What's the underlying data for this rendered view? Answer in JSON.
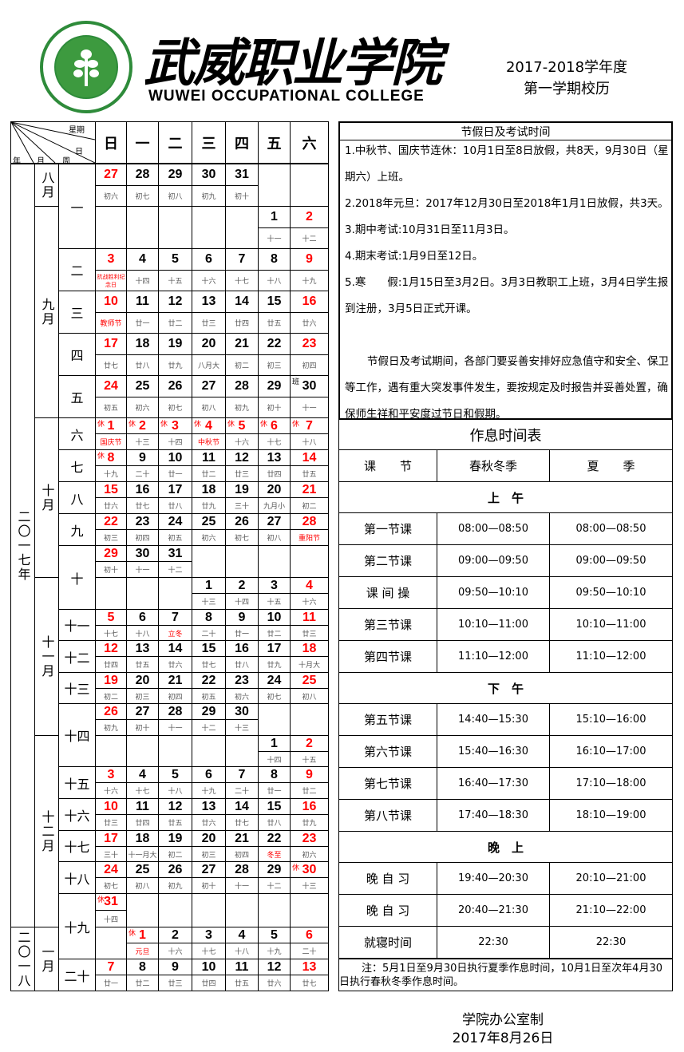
{
  "header": {
    "college_cn": "武威职业学院",
    "college_en": "WUWEI OCCUPATIONAL COLLEGE",
    "logo_text": "武威职业学院 WUWEI OCCUPATIONAL COLLEGE 2003.6.6",
    "year_label": "2017-2018学年度",
    "semester_label": "第一学期校历"
  },
  "corner": {
    "weekday": "星期",
    "day": "日",
    "year": "年",
    "month": "月",
    "week": "周"
  },
  "weekdays": [
    "日",
    "一",
    "二",
    "三",
    "四",
    "五",
    "六"
  ],
  "colors": {
    "holiday": "#ff0000",
    "logo_green": "#2e8b3a"
  },
  "years": [
    {
      "label": "二〇一七年",
      "rows": 22
    },
    {
      "label": "二〇一八",
      "rows": 2
    }
  ],
  "months": [
    {
      "label": "八月",
      "rows": 1
    },
    {
      "label": "九月",
      "rows": 5
    },
    {
      "label": "十月",
      "rows": 5
    },
    {
      "label": "十一月",
      "rows": 5
    },
    {
      "label": "十二月",
      "rows": 6
    },
    {
      "label": "一月",
      "rows": 2
    }
  ],
  "weeks": [
    {
      "label": "一",
      "rows": 2
    },
    {
      "label": "二",
      "rows": 1
    },
    {
      "label": "三",
      "rows": 1
    },
    {
      "label": "四",
      "rows": 1
    },
    {
      "label": "五",
      "rows": 1
    },
    {
      "label": "六",
      "rows": 1
    },
    {
      "label": "七",
      "rows": 1
    },
    {
      "label": "八",
      "rows": 1
    },
    {
      "label": "九",
      "rows": 1
    },
    {
      "label": "十",
      "rows": 2
    },
    {
      "label": "十一",
      "rows": 1
    },
    {
      "label": "十二",
      "rows": 1
    },
    {
      "label": "十三",
      "rows": 1
    },
    {
      "label": "十四",
      "rows": 2
    },
    {
      "label": "十五",
      "rows": 1
    },
    {
      "label": "十六",
      "rows": 1
    },
    {
      "label": "十七",
      "rows": 1
    },
    {
      "label": "十八",
      "rows": 1
    },
    {
      "label": "十九",
      "rows": 2
    },
    {
      "label": "二十",
      "rows": 1
    }
  ],
  "rest_mark": "休",
  "work_mark": "班",
  "calendar": [
    {
      "start": 0,
      "days": [
        [
          "27",
          "初六"
        ],
        [
          "28",
          "初七"
        ],
        [
          "29",
          "初八"
        ],
        [
          "30",
          "初九"
        ],
        [
          "31",
          "初十"
        ]
      ]
    },
    {
      "start": 5,
      "days": [
        [
          "1",
          "十一"
        ],
        [
          "2",
          "十二"
        ]
      ]
    },
    {
      "start": 0,
      "days": [
        [
          "3",
          "抗战胜利纪念日",
          "L"
        ],
        [
          "4",
          "十四"
        ],
        [
          "5",
          "十五"
        ],
        [
          "6",
          "十六"
        ],
        [
          "7",
          "十七"
        ],
        [
          "8",
          "十八"
        ],
        [
          "9",
          "十九"
        ]
      ]
    },
    {
      "start": 0,
      "days": [
        [
          "10",
          "教师节",
          "L"
        ],
        [
          "11",
          "廿一"
        ],
        [
          "12",
          "廿二"
        ],
        [
          "13",
          "廿三"
        ],
        [
          "14",
          "廿四"
        ],
        [
          "15",
          "廿五"
        ],
        [
          "16",
          "廿六"
        ]
      ]
    },
    {
      "start": 0,
      "days": [
        [
          "17",
          "廿七"
        ],
        [
          "18",
          "廿八"
        ],
        [
          "19",
          "廿九"
        ],
        [
          "20",
          "八月大"
        ],
        [
          "21",
          "初二"
        ],
        [
          "22",
          "初三"
        ],
        [
          "23",
          "初四"
        ]
      ]
    },
    {
      "start": 0,
      "days": [
        [
          "24",
          "初五"
        ],
        [
          "25",
          "初六"
        ],
        [
          "26",
          "初七"
        ],
        [
          "27",
          "初八"
        ],
        [
          "28",
          "初九"
        ],
        [
          "29",
          "初十"
        ],
        [
          "30",
          "十一",
          "b"
        ]
      ]
    },
    {
      "start": 0,
      "days": [
        [
          "1",
          "国庆节",
          "hL"
        ],
        [
          "2",
          "十三",
          "h"
        ],
        [
          "3",
          "十四",
          "h"
        ],
        [
          "4",
          "中秋节",
          "hL"
        ],
        [
          "5",
          "十六",
          "h"
        ],
        [
          "6",
          "十七",
          "h"
        ],
        [
          "7",
          "十八",
          "h"
        ]
      ]
    },
    {
      "start": 0,
      "days": [
        [
          "8",
          "十九",
          "h"
        ],
        [
          "9",
          "二十"
        ],
        [
          "10",
          "廿一"
        ],
        [
          "11",
          "廿二"
        ],
        [
          "12",
          "廿三"
        ],
        [
          "13",
          "廿四"
        ],
        [
          "14",
          "廿五"
        ]
      ]
    },
    {
      "start": 0,
      "days": [
        [
          "15",
          "廿六"
        ],
        [
          "16",
          "廿七"
        ],
        [
          "17",
          "廿八"
        ],
        [
          "18",
          "廿九"
        ],
        [
          "19",
          "三十"
        ],
        [
          "20",
          "九月小"
        ],
        [
          "21",
          "初二"
        ]
      ]
    },
    {
      "start": 0,
      "days": [
        [
          "22",
          "初三"
        ],
        [
          "23",
          "初四"
        ],
        [
          "24",
          "初五"
        ],
        [
          "25",
          "初六"
        ],
        [
          "26",
          "初七"
        ],
        [
          "27",
          "初八"
        ],
        [
          "28",
          "重阳节",
          "L"
        ]
      ]
    },
    {
      "start": 0,
      "days": [
        [
          "29",
          "初十"
        ],
        [
          "30",
          "十一"
        ],
        [
          "31",
          "十二"
        ]
      ]
    },
    {
      "start": 3,
      "days": [
        [
          "1",
          "十三"
        ],
        [
          "2",
          "十四"
        ],
        [
          "3",
          "十五"
        ],
        [
          "4",
          "十六"
        ]
      ]
    },
    {
      "start": 0,
      "days": [
        [
          "5",
          "十七"
        ],
        [
          "6",
          "十八"
        ],
        [
          "7",
          "立冬",
          "L"
        ],
        [
          "8",
          "二十"
        ],
        [
          "9",
          "廿一"
        ],
        [
          "10",
          "廿二"
        ],
        [
          "11",
          "廿三"
        ]
      ]
    },
    {
      "start": 0,
      "days": [
        [
          "12",
          "廿四"
        ],
        [
          "13",
          "廿五"
        ],
        [
          "14",
          "廿六"
        ],
        [
          "15",
          "廿七"
        ],
        [
          "16",
          "廿八"
        ],
        [
          "17",
          "廿九"
        ],
        [
          "18",
          "十月大"
        ]
      ]
    },
    {
      "start": 0,
      "days": [
        [
          "19",
          "初二"
        ],
        [
          "20",
          "初三"
        ],
        [
          "21",
          "初四"
        ],
        [
          "22",
          "初五"
        ],
        [
          "23",
          "初六"
        ],
        [
          "24",
          "初七"
        ],
        [
          "25",
          "初八"
        ]
      ]
    },
    {
      "start": 0,
      "days": [
        [
          "26",
          "初九"
        ],
        [
          "27",
          "初十"
        ],
        [
          "28",
          "十一"
        ],
        [
          "29",
          "十二"
        ],
        [
          "30",
          "十三"
        ]
      ]
    },
    {
      "start": 5,
      "days": [
        [
          "1",
          "十四"
        ],
        [
          "2",
          "十五"
        ]
      ]
    },
    {
      "start": 0,
      "days": [
        [
          "3",
          "十六"
        ],
        [
          "4",
          "十七"
        ],
        [
          "5",
          "十八"
        ],
        [
          "6",
          "十九"
        ],
        [
          "7",
          "二十"
        ],
        [
          "8",
          "廿一"
        ],
        [
          "9",
          "廿二"
        ]
      ]
    },
    {
      "start": 0,
      "days": [
        [
          "10",
          "廿三"
        ],
        [
          "11",
          "廿四"
        ],
        [
          "12",
          "廿五"
        ],
        [
          "13",
          "廿六"
        ],
        [
          "14",
          "廿七"
        ],
        [
          "15",
          "廿八"
        ],
        [
          "16",
          "廿九"
        ]
      ]
    },
    {
      "start": 0,
      "days": [
        [
          "17",
          "三十"
        ],
        [
          "18",
          "十一月大"
        ],
        [
          "19",
          "初二"
        ],
        [
          "20",
          "初三"
        ],
        [
          "21",
          "初四"
        ],
        [
          "22",
          "冬至",
          "L"
        ],
        [
          "23",
          "初六"
        ]
      ]
    },
    {
      "start": 0,
      "days": [
        [
          "24",
          "初七"
        ],
        [
          "25",
          "初八"
        ],
        [
          "26",
          "初九"
        ],
        [
          "27",
          "初十"
        ],
        [
          "28",
          "十一"
        ],
        [
          "29",
          "十二"
        ],
        [
          "30",
          "十三",
          "h"
        ]
      ]
    },
    {
      "start": 0,
      "days": [
        [
          "31",
          "十四",
          "h"
        ]
      ]
    },
    {
      "start": 1,
      "days": [
        [
          "1",
          "元旦",
          "hL"
        ],
        [
          "2",
          "十六"
        ],
        [
          "3",
          "十七"
        ],
        [
          "4",
          "十八"
        ],
        [
          "5",
          "十九"
        ],
        [
          "6",
          "二十"
        ]
      ]
    },
    {
      "start": 0,
      "days": [
        [
          "7",
          "廿一"
        ],
        [
          "8",
          "廿二"
        ],
        [
          "9",
          "廿三"
        ],
        [
          "10",
          "廿四"
        ],
        [
          "11",
          "廿五"
        ],
        [
          "12",
          "廿六"
        ],
        [
          "13",
          "廿七"
        ]
      ]
    }
  ],
  "holidays": {
    "title": "节假日及考试时间",
    "items": [
      "1.中秋节、国庆节连休：10月1日至8日放假，共8天，9月30日（星期六）上班。",
      "2.2018年元旦：2017年12月30日至2018年1月1日放假，共3天。",
      "3.期中考试:10月31日至11月3日。",
      "4.期末考试:1月9日至12日。",
      "5.寒　　假:1月15日至3月2日。3月3日教职工上班，3月4日学生报到注册，3月5日正式开课。"
    ],
    "notice": "节假日及考试期间，各部门要妥善安排好应急值守和安全、保卫等工作，遇有重大突发事件发生，要按规定及时报告并妥善处置，确保师生祥和平安度过节日和假期。"
  },
  "schedule": {
    "title": "作息时间表",
    "headers": [
      "课　　节",
      "春秋冬季",
      "夏　　季"
    ],
    "sections": [
      {
        "label": "上　午",
        "rows": [
          [
            "第一节课",
            "08:00—08:50",
            "08:00—08:50"
          ],
          [
            "第二节课",
            "09:00—09:50",
            "09:00—09:50"
          ],
          [
            "课 间 操",
            "09:50—10:10",
            "09:50—10:10"
          ],
          [
            "第三节课",
            "10:10—11:00",
            "10:10—11:00"
          ],
          [
            "第四节课",
            "11:10—12:00",
            "11:10—12:00"
          ]
        ]
      },
      {
        "label": "下　午",
        "rows": [
          [
            "第五节课",
            "14:40—15:30",
            "15:10—16:00"
          ],
          [
            "第六节课",
            "15:40—16:30",
            "16:10—17:00"
          ],
          [
            "第七节课",
            "16:40—17:30",
            "17:10—18:00"
          ],
          [
            "第八节课",
            "17:40—18:30",
            "18:10—19:00"
          ]
        ]
      },
      {
        "label": "晚　上",
        "rows": [
          [
            "晚 自 习",
            "19:40—20:30",
            "20:10—21:00"
          ],
          [
            "晚 自 习",
            "20:40—21:30",
            "21:10—22:00"
          ],
          [
            "就寝时间",
            "22:30",
            "22:30"
          ]
        ]
      }
    ],
    "note": "注：5月1日至9月30日执行夏季作息时间，10月1日至次年4月30日执行春秋冬季作息时间。"
  },
  "footer": {
    "issuer": "学院办公室制",
    "date": "2017年8月26日"
  }
}
